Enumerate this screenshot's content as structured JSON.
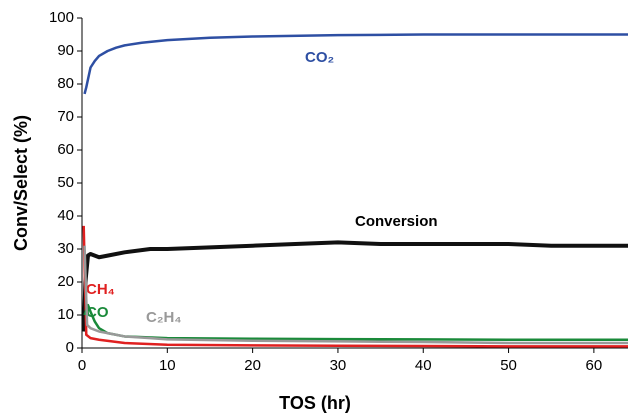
{
  "chart_data": {
    "type": "line",
    "xlabel": "TOS (hr)",
    "ylabel": "Conv/Select (%)",
    "xlim": [
      0,
      64
    ],
    "xticks": [
      0,
      10,
      20,
      30,
      40,
      50,
      60
    ],
    "ylim": [
      0,
      100
    ],
    "yticks": [
      0,
      10,
      20,
      30,
      40,
      50,
      60,
      70,
      80,
      90,
      100
    ],
    "series": [
      {
        "name": "CO₂",
        "color": "#2e4fa3",
        "x": [
          0.3,
          0.5,
          1,
          1.5,
          2,
          3,
          4,
          5,
          7,
          10,
          15,
          20,
          30,
          40,
          50,
          60,
          64
        ],
        "values": [
          77,
          79,
          85,
          87,
          88.5,
          90,
          91,
          91.7,
          92.5,
          93.3,
          94,
          94.4,
          94.8,
          95,
          95,
          95,
          95
        ]
      },
      {
        "name": "Conversion",
        "color": "#111111",
        "x": [
          0.2,
          0.4,
          0.7,
          1,
          2,
          3,
          5,
          8,
          10,
          15,
          20,
          25,
          30,
          35,
          40,
          45,
          50,
          55,
          60,
          64
        ],
        "values": [
          5,
          20,
          28,
          28.5,
          27.5,
          28,
          29,
          30,
          30,
          30.5,
          31,
          31.5,
          32,
          31.5,
          31.5,
          31.5,
          31.5,
          31,
          31,
          31
        ]
      },
      {
        "name": "CH₄",
        "color": "#e02020",
        "x": [
          0.2,
          0.5,
          1,
          2,
          5,
          10,
          20,
          30,
          40,
          50,
          60,
          64
        ],
        "values": [
          37,
          4,
          3,
          2.5,
          1.5,
          1,
          0.8,
          0.7,
          0.6,
          0.5,
          0.5,
          0.5
        ]
      },
      {
        "name": "CO",
        "color": "#1a8a3a",
        "x": [
          0.3,
          0.7,
          1,
          1.5,
          2,
          3,
          5,
          10,
          20,
          30,
          40,
          50,
          60,
          64
        ],
        "values": [
          10,
          13,
          11,
          8,
          6,
          4.5,
          3.5,
          3,
          2.8,
          2.7,
          2.6,
          2.5,
          2.5,
          2.5
        ]
      },
      {
        "name": "C₂H₄",
        "color": "#999999",
        "x": [
          0.3,
          0.6,
          1,
          2,
          3,
          5,
          8,
          10,
          20,
          30,
          40,
          50,
          60,
          64
        ],
        "values": [
          31,
          7,
          6,
          5,
          4.5,
          3.5,
          3,
          2.6,
          2.2,
          2,
          1.8,
          1.5,
          1.5,
          1.5
        ]
      }
    ]
  }
}
